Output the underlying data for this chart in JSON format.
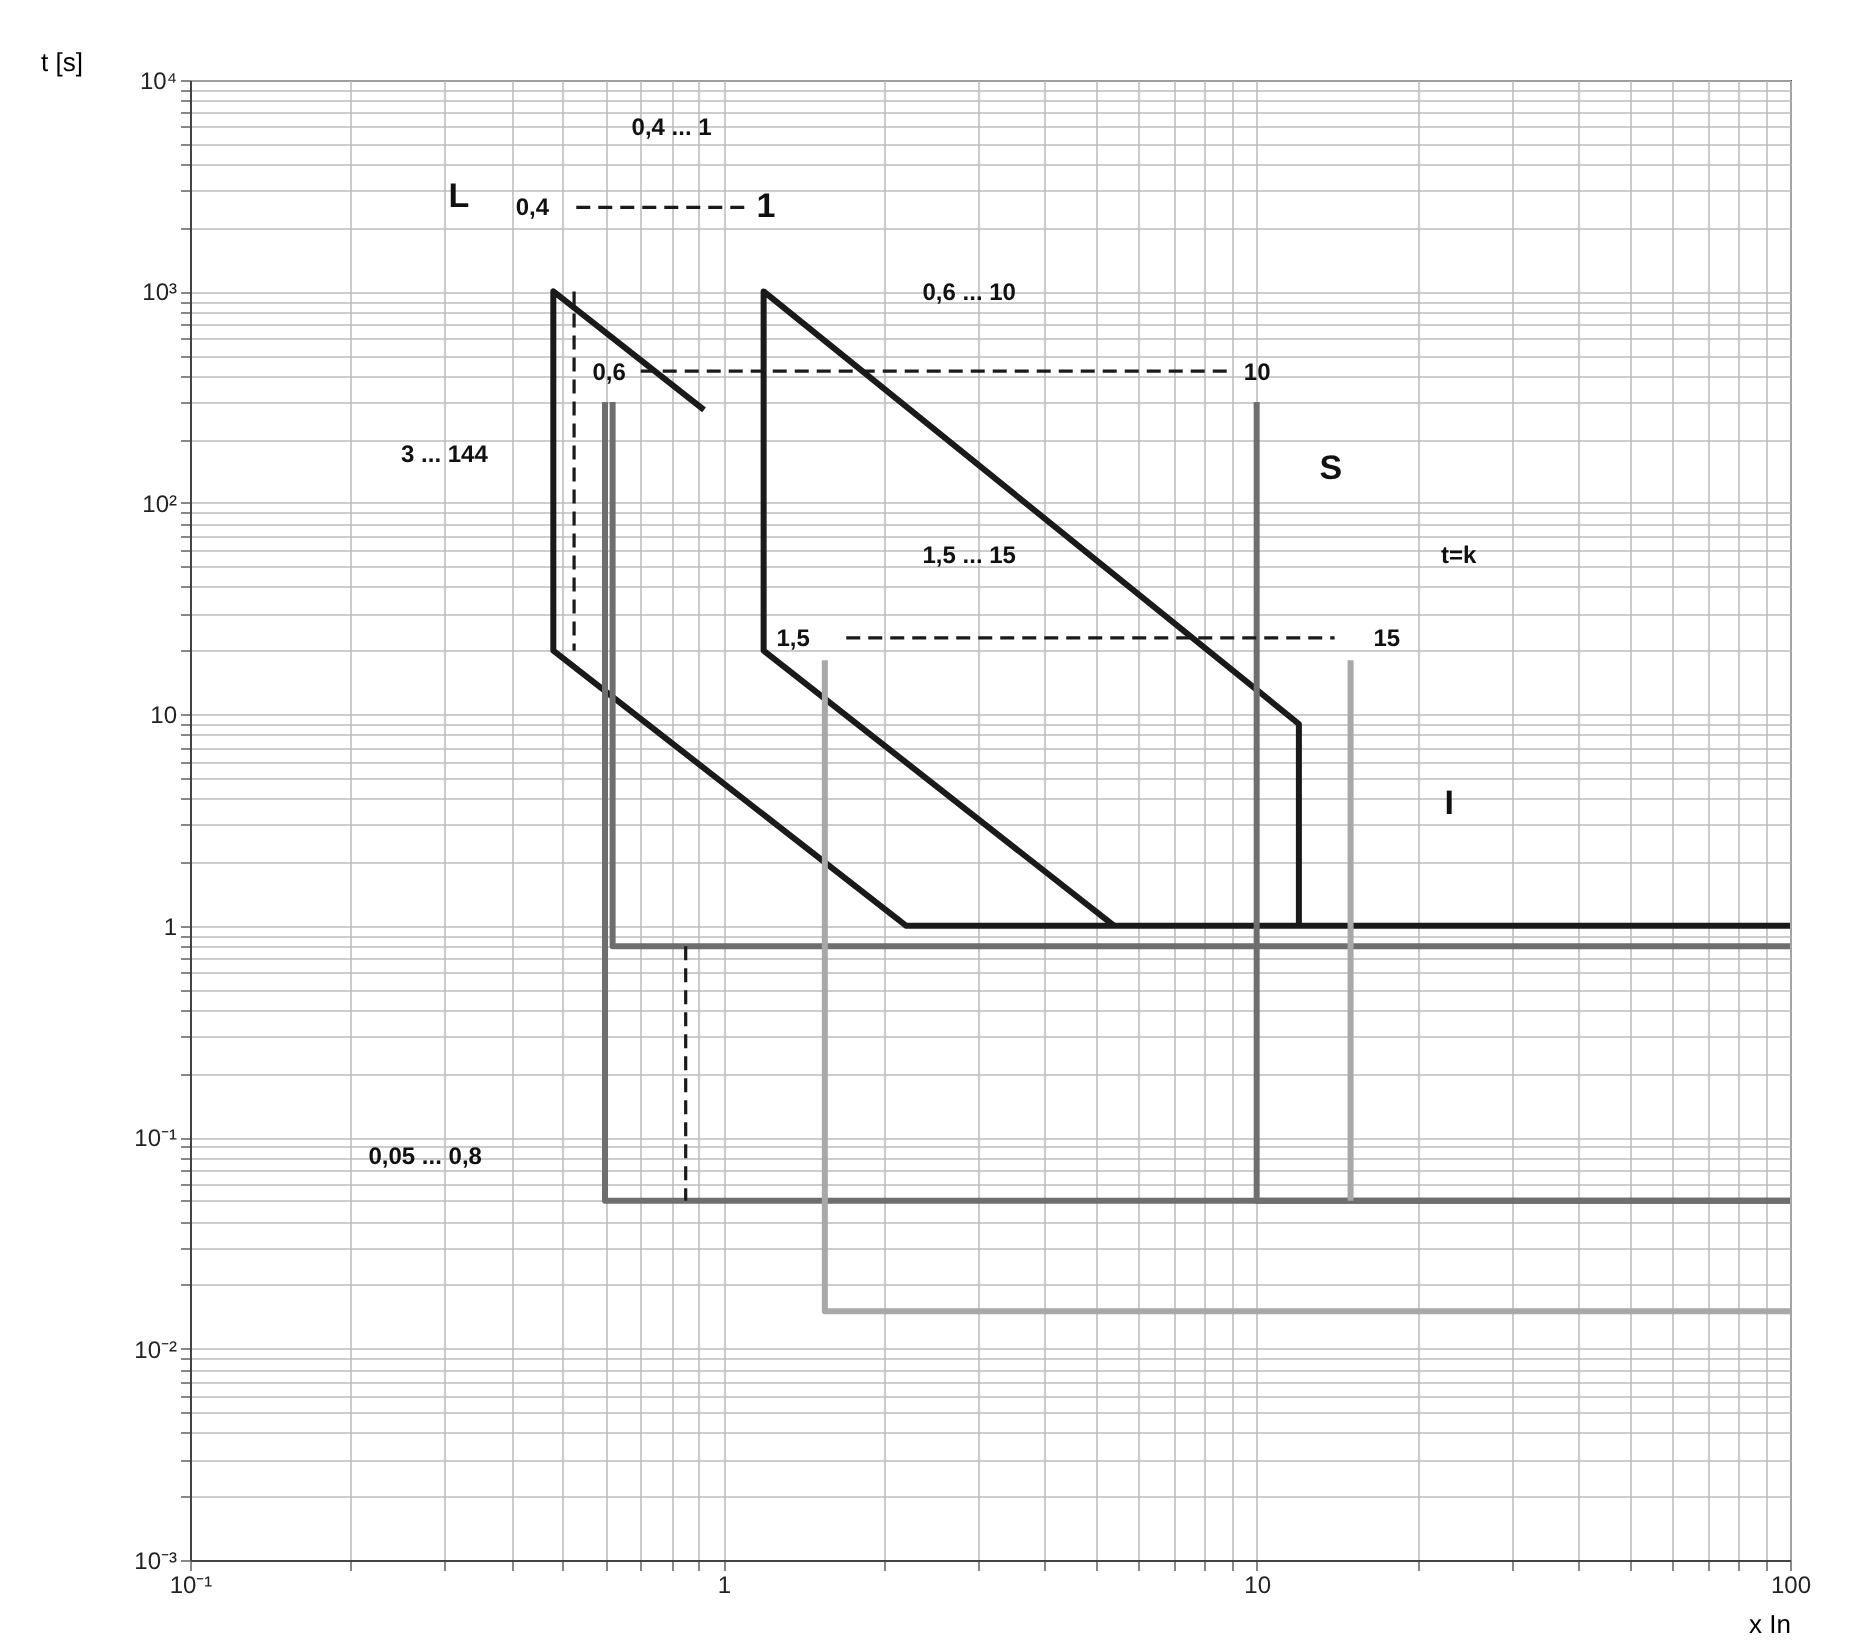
{
  "chart_data": {
    "type": "line",
    "xlabel": "x In",
    "ylabel": "t [s]",
    "log": "xy",
    "grid": true,
    "xlim": [
      0.1,
      100
    ],
    "ylim": [
      0.001,
      10000
    ],
    "xticks": [
      {
        "value": 0.1,
        "label": "10⁻¹"
      },
      {
        "value": 0.2,
        "label": null
      },
      {
        "value": 0.3,
        "label": null
      },
      {
        "value": 0.4,
        "label": null
      },
      {
        "value": 0.5,
        "label": null
      },
      {
        "value": 0.6,
        "label": null
      },
      {
        "value": 0.7,
        "label": null
      },
      {
        "value": 0.8,
        "label": null
      },
      {
        "value": 0.9,
        "label": null
      },
      1,
      {
        "value": 2,
        "label": null
      },
      {
        "value": 3,
        "label": null
      },
      {
        "value": 4,
        "label": null
      },
      {
        "value": 5,
        "label": null
      },
      {
        "value": 6,
        "label": null
      },
      {
        "value": 7,
        "label": null
      },
      {
        "value": 8,
        "label": null
      },
      {
        "value": 9,
        "label": null
      },
      10,
      {
        "value": 20,
        "label": null
      },
      {
        "value": 30,
        "label": null
      },
      {
        "value": 40,
        "label": null
      },
      {
        "value": 50,
        "label": null
      },
      {
        "value": 60,
        "label": null
      },
      {
        "value": 70,
        "label": null
      },
      {
        "value": 80,
        "label": null
      },
      {
        "value": 90,
        "label": null
      },
      100
    ],
    "yticks": [
      {
        "value": 0.001,
        "label": "10⁻³"
      },
      {
        "value": 0.002,
        "label": null
      },
      {
        "value": 0.003,
        "label": null
      },
      {
        "value": 0.004,
        "label": null
      },
      {
        "value": 0.005,
        "label": null
      },
      {
        "value": 0.006,
        "label": null
      },
      {
        "value": 0.007,
        "label": null
      },
      {
        "value": 0.008,
        "label": null
      },
      {
        "value": 0.009,
        "label": null
      },
      {
        "value": 0.01,
        "label": "10⁻²"
      },
      {
        "value": 0.02,
        "label": null
      },
      {
        "value": 0.03,
        "label": null
      },
      {
        "value": 0.04,
        "label": null
      },
      {
        "value": 0.05,
        "label": null
      },
      {
        "value": 0.06,
        "label": null
      },
      {
        "value": 0.07,
        "label": null
      },
      {
        "value": 0.08,
        "label": null
      },
      {
        "value": 0.09,
        "label": null
      },
      {
        "value": 0.1,
        "label": "10⁻¹"
      },
      {
        "value": 0.2,
        "label": null
      },
      {
        "value": 0.3,
        "label": null
      },
      {
        "value": 0.4,
        "label": null
      },
      {
        "value": 0.5,
        "label": null
      },
      {
        "value": 0.6,
        "label": null
      },
      {
        "value": 0.7,
        "label": null
      },
      {
        "value": 0.8,
        "label": null
      },
      {
        "value": 0.9,
        "label": null
      },
      1,
      {
        "value": 2,
        "label": null
      },
      {
        "value": 3,
        "label": null
      },
      {
        "value": 4,
        "label": null
      },
      {
        "value": 5,
        "label": null
      },
      {
        "value": 6,
        "label": null
      },
      {
        "value": 7,
        "label": null
      },
      {
        "value": 8,
        "label": null
      },
      {
        "value": 9,
        "label": null
      },
      10,
      {
        "value": 20,
        "label": null
      },
      {
        "value": 30,
        "label": null
      },
      {
        "value": 40,
        "label": null
      },
      {
        "value": 50,
        "label": null
      },
      {
        "value": 60,
        "label": null
      },
      {
        "value": 70,
        "label": null
      },
      {
        "value": 80,
        "label": null
      },
      {
        "value": 90,
        "label": null
      },
      {
        "value": 100,
        "label": "10²"
      },
      {
        "value": 200,
        "label": null
      },
      {
        "value": 300,
        "label": null
      },
      {
        "value": 400,
        "label": null
      },
      {
        "value": 500,
        "label": null
      },
      {
        "value": 600,
        "label": null
      },
      {
        "value": 700,
        "label": null
      },
      {
        "value": 800,
        "label": null
      },
      {
        "value": 900,
        "label": null
      },
      {
        "value": 1000,
        "label": "10³"
      },
      {
        "value": 2000,
        "label": null
      },
      {
        "value": 3000,
        "label": null
      },
      {
        "value": 4000,
        "label": null
      },
      {
        "value": 5000,
        "label": null
      },
      {
        "value": 6000,
        "label": null
      },
      {
        "value": 7000,
        "label": null
      },
      {
        "value": 8000,
        "label": null
      },
      {
        "value": 9000,
        "label": null
      },
      {
        "value": 10000,
        "label": "10⁴"
      }
    ],
    "series": [
      {
        "color": "#1a1a1a",
        "line_style": "solid",
        "x": [
          0.92,
          0.48,
          0.48,
          2.2,
          100
        ],
        "values": [
          275,
          1000,
          20,
          1,
          1
        ]
      },
      {
        "color": "#1a1a1a",
        "line_style": "solid",
        "x": [
          5.4,
          1.19,
          1.19,
          12,
          12
        ],
        "values": [
          1,
          20,
          1000,
          9,
          1
        ]
      },
      {
        "color": "#6e6e6e",
        "line_style": "solid",
        "x": [
          0.62,
          0.62,
          100
        ],
        "values": [
          300,
          0.8,
          0.8
        ]
      },
      {
        "color": "#6e6e6e",
        "line_style": "solid",
        "x": [
          0.6,
          0.6,
          100
        ],
        "values": [
          300,
          0.05,
          0.05
        ]
      },
      {
        "color": "#6e6e6e",
        "line_style": "solid",
        "x": [
          10,
          10,
          100
        ],
        "values": [
          300,
          0.05,
          0.05
        ]
      },
      {
        "color": "#a8a8a8",
        "line_style": "solid",
        "x": [
          1.55,
          1.55,
          100
        ],
        "values": [
          18,
          0.015,
          0.015
        ]
      },
      {
        "color": "#a8a8a8",
        "line_style": "solid",
        "x": [
          15,
          15
        ],
        "values": [
          18,
          0.05
        ]
      },
      {
        "color": "#1a1a1a",
        "line_style": "dashed",
        "x": [
          0.53,
          1.1
        ],
        "values": [
          2500,
          2500
        ]
      },
      {
        "color": "#1a1a1a",
        "line_style": "dashed",
        "x": [
          0.7,
          9
        ],
        "values": [
          420,
          420
        ]
      },
      {
        "color": "#1a1a1a",
        "line_style": "dashed",
        "x": [
          1.7,
          14
        ],
        "values": [
          23,
          23
        ]
      },
      {
        "color": "#1a1a1a",
        "line_style": "dashed",
        "x": [
          0.525,
          0.525
        ],
        "values": [
          1000,
          20
        ]
      },
      {
        "color": "#1a1a1a",
        "line_style": "dashed",
        "x": [
          0.85,
          0.85
        ],
        "values": [
          0.8,
          0.05
        ]
      }
    ],
    "annotations": [
      "L",
      "0,4 ... 1",
      "0,4",
      "1",
      "0,6 ... 10",
      "0,6",
      "10",
      "S",
      "t=k",
      "1,5 ... 15",
      "1,5",
      "15",
      "3 ... 144",
      "I",
      "0,05 ... 0,8"
    ]
  }
}
